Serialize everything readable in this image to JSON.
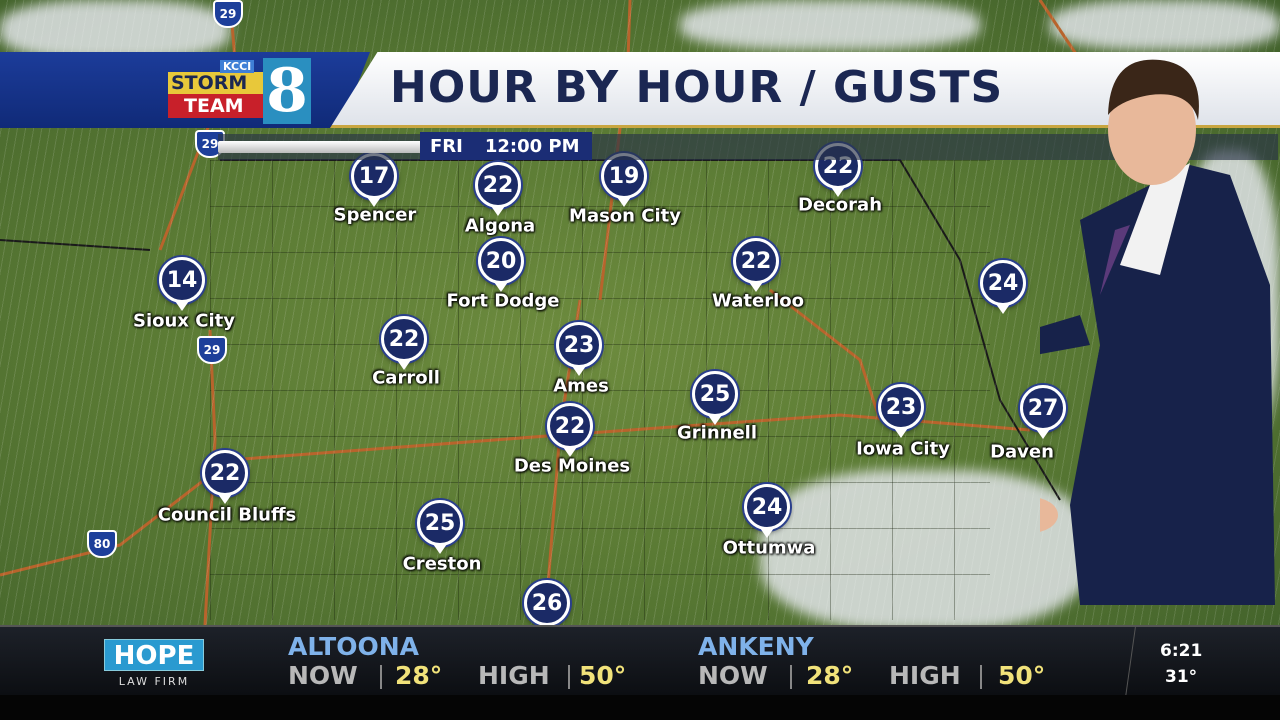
{
  "header": {
    "title": "HOUR BY HOUR / GUSTS",
    "logo": {
      "kcci": "KCCI",
      "storm": "STORM",
      "team": "TEAM",
      "number": "8"
    },
    "day": "FRI",
    "time": "12:00 PM"
  },
  "map": {
    "units": "mph gusts",
    "cities": [
      {
        "name": "Spencer",
        "gust": "17"
      },
      {
        "name": "Algona",
        "gust": "22"
      },
      {
        "name": "Mason City",
        "gust": "19"
      },
      {
        "name": "Decorah",
        "gust": "22"
      },
      {
        "name": "Sioux City",
        "gust": "14"
      },
      {
        "name": "Fort Dodge",
        "gust": "20"
      },
      {
        "name": "Waterloo",
        "gust": "22"
      },
      {
        "name": "Carroll",
        "gust": "22"
      },
      {
        "name": "Ames",
        "gust": "23"
      },
      {
        "name": "Grinnell",
        "gust": "25"
      },
      {
        "name": "Iowa City",
        "gust": "23"
      },
      {
        "name": "Des Moines",
        "gust": "22"
      },
      {
        "name": "Council Bluffs",
        "gust": "22"
      },
      {
        "name": "Creston",
        "gust": "25"
      },
      {
        "name": "Ottumwa",
        "gust": "24"
      },
      {
        "name": "",
        "gust": "26"
      },
      {
        "name": "",
        "gust": "24"
      },
      {
        "name": "Daven",
        "gust": "27"
      }
    ],
    "shields": [
      "29",
      "29",
      "29",
      "80"
    ],
    "marker_color": "#1b2a66"
  },
  "ticker": {
    "sponsor": {
      "name": "HOPE",
      "sub": "LAW FIRM"
    },
    "locations": [
      {
        "name": "ALTOONA",
        "now_label": "NOW",
        "now": "28°",
        "high_label": "HIGH",
        "high": "50°"
      },
      {
        "name": "ANKENY",
        "now_label": "NOW",
        "now": "28°",
        "high_label": "HIGH",
        "high": "50°"
      }
    ],
    "clock": {
      "time": "6:21",
      "temp": "31°"
    }
  }
}
